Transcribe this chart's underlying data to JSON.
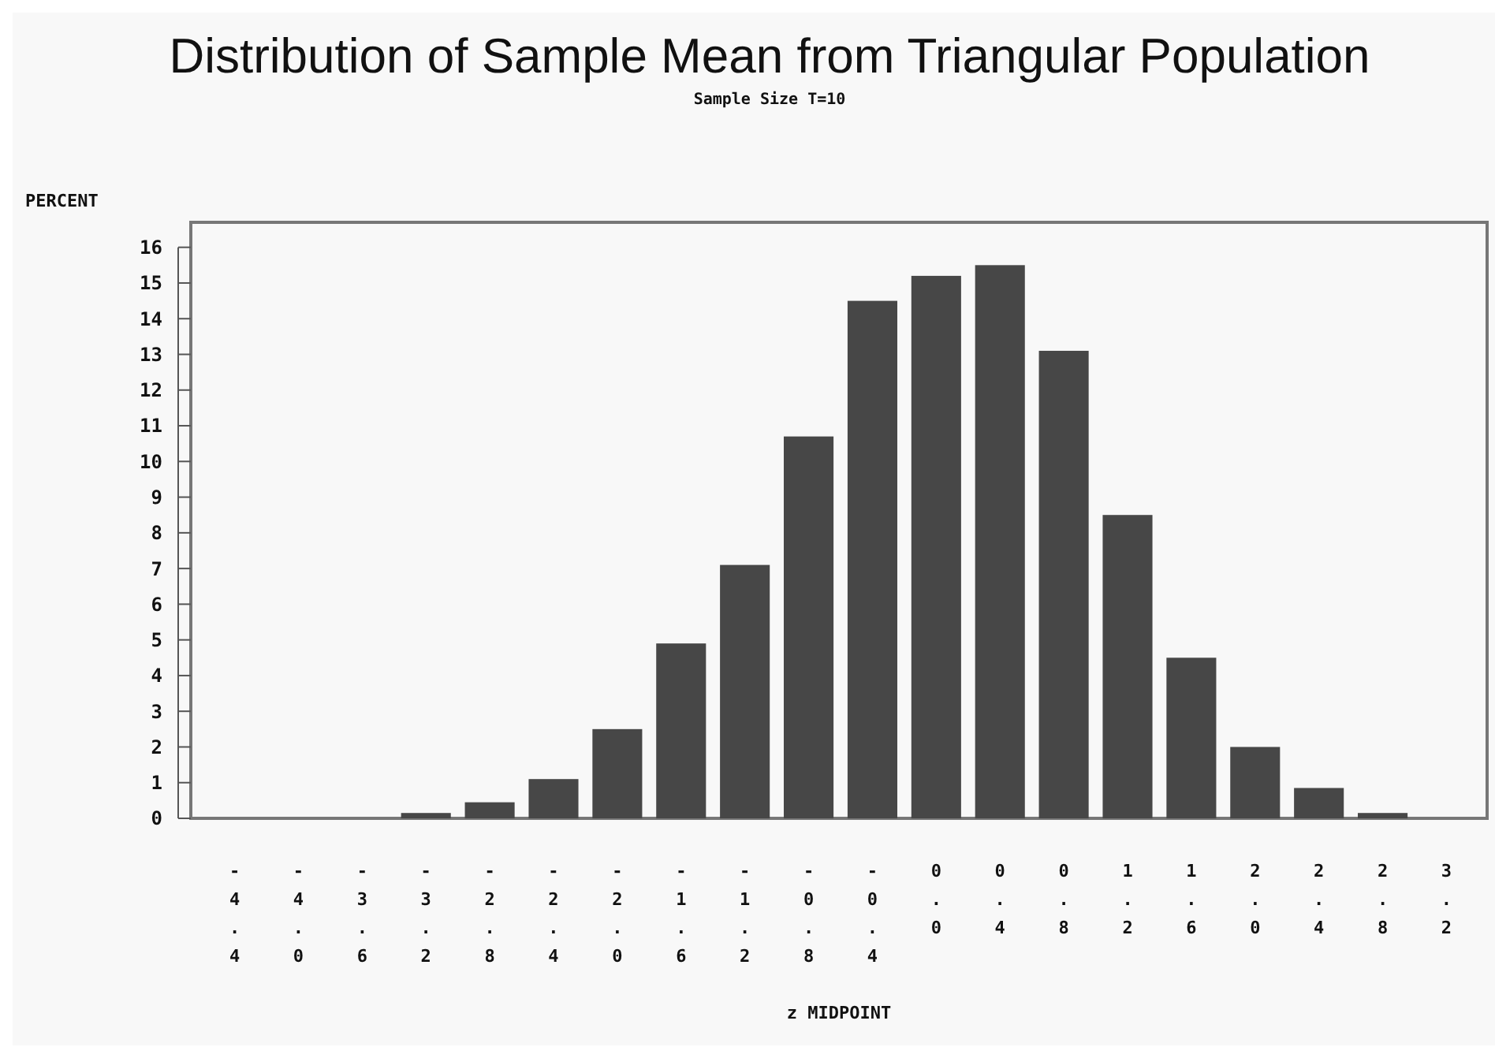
{
  "chart_data": {
    "type": "bar",
    "title": "Distribution of Sample Mean from Triangular Population",
    "subtitle": "Sample Size T=10",
    "xlabel": "z MIDPOINT",
    "ylabel": "PERCENT",
    "categories": [
      "-4.4",
      "-4.0",
      "-3.6",
      "-3.2",
      "-2.8",
      "-2.4",
      "-2.0",
      "-1.6",
      "-1.2",
      "-0.8",
      "-0.4",
      "0.0",
      "0.4",
      "0.8",
      "1.2",
      "1.6",
      "2.0",
      "2.4",
      "2.8",
      "3.2"
    ],
    "values": [
      0,
      0,
      0,
      0.15,
      0.45,
      1.1,
      2.5,
      4.9,
      7.1,
      10.7,
      14.5,
      15.2,
      15.5,
      13.1,
      8.5,
      4.5,
      2.0,
      0.85,
      0.15,
      0
    ],
    "color": "#474747",
    "ylim": [
      0,
      16.7
    ],
    "yticks": [
      0,
      1,
      2,
      3,
      4,
      5,
      6,
      7,
      8,
      9,
      10,
      11,
      12,
      13,
      14,
      15,
      16
    ],
    "grid": false
  }
}
